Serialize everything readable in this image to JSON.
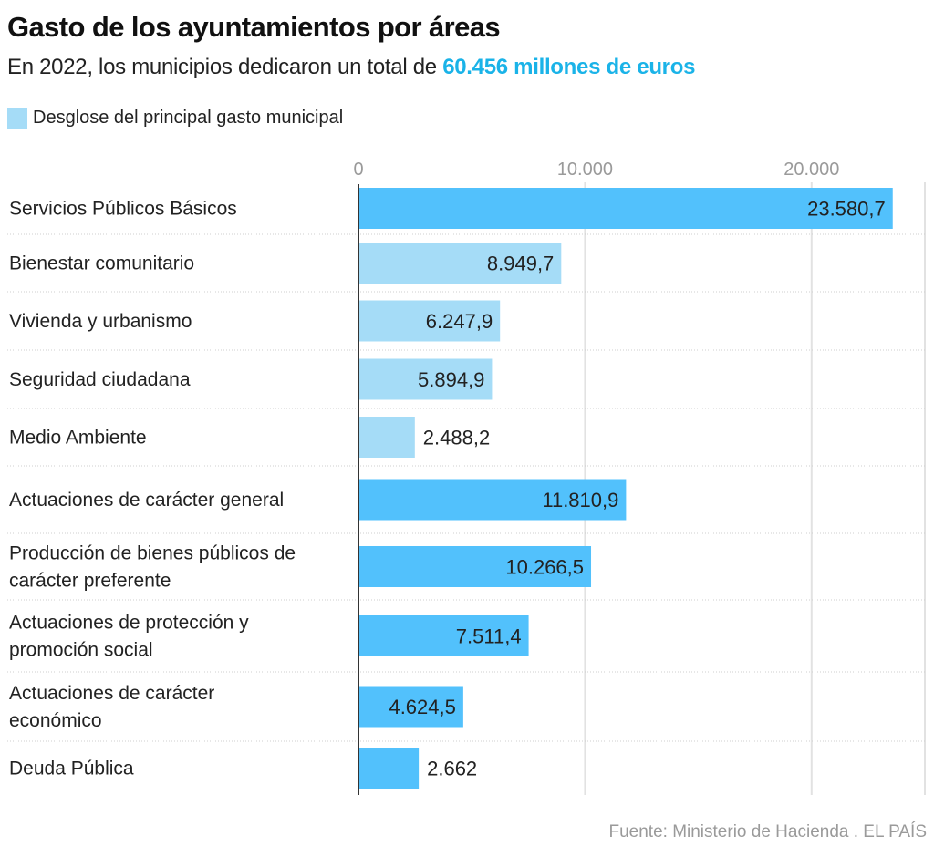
{
  "header": {
    "title": "Gasto de los ayuntamientos por áreas",
    "subtitle_prefix": "En 2022, los municipios dedicaron un total de ",
    "subtitle_highlight": "60.456 millones de euros"
  },
  "legend": {
    "label": "Desglose del principal gasto municipal"
  },
  "footer": {
    "source": "Fuente: Ministerio de Hacienda . EL PAÍS"
  },
  "colors": {
    "primary_bar": "#52c1fc",
    "breakdown_bar": "#a5dcf7",
    "highlight_text": "#1ab3e8",
    "axis": "#333333",
    "gridline": "#e2e2e2",
    "separator": "#cfcfcf",
    "tick_label": "#9a9a9a"
  },
  "chart_data": {
    "type": "bar",
    "orientation": "horizontal",
    "title": "Gasto de los ayuntamientos por áreas",
    "subtitle": "En 2022, los municipios dedicaron un total de 60.456 millones de euros",
    "xlabel": "",
    "ylabel": "",
    "xlim": [
      0,
      25000
    ],
    "xticks": [
      0,
      10000,
      20000
    ],
    "xtick_labels": [
      "0",
      "10.000",
      "20.000"
    ],
    "grid": true,
    "legend": [
      {
        "name": "Desglose del principal gasto municipal",
        "color": "#a5dcf7"
      }
    ],
    "legend_position": "top-left",
    "categories": [
      [
        "Servicios Públicos Básicos"
      ],
      [
        "Bienestar comunitario"
      ],
      [
        "Vivienda y urbanismo"
      ],
      [
        "Seguridad ciudadana"
      ],
      [
        "Medio Ambiente"
      ],
      [
        "Actuaciones de carácter general"
      ],
      [
        "Producción de bienes públicos de",
        "carácter preferente"
      ],
      [
        "Actuaciones de protección y",
        "promoción social"
      ],
      [
        "Actuaciones de carácter",
        "económico"
      ],
      [
        "Deuda Pública"
      ]
    ],
    "values": [
      23580.7,
      8949.7,
      6247.9,
      5894.9,
      2488.2,
      11810.9,
      10266.5,
      7511.4,
      4624.5,
      2662
    ],
    "value_labels": [
      "23.580,7",
      "8.949,7",
      "6.247,9",
      "5.894,9",
      "2.488,2",
      "11.810,9",
      "10.266,5",
      "7.511,4",
      "4.624,5",
      "2.662"
    ],
    "breakdown": [
      false,
      true,
      true,
      true,
      true,
      false,
      false,
      false,
      false,
      false
    ],
    "units": "millones de euros"
  }
}
